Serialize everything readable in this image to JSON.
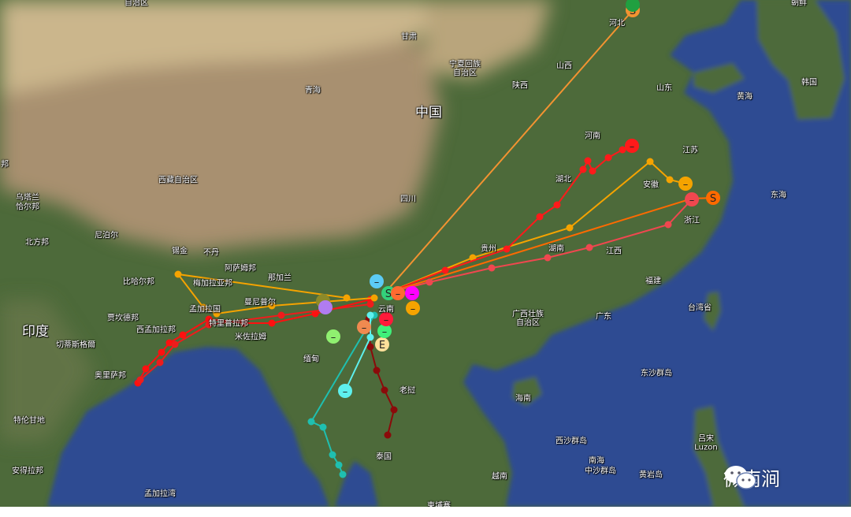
{
  "map": {
    "colors": {
      "ocean": "#2d4b92",
      "desert": "#cbb68c",
      "plateau": "#a8906f",
      "vegetation": "#4d6a3a"
    },
    "labels": {
      "xinjiang": "自治区",
      "gansu": "甘肃",
      "ningxia_1": "宁夏回族",
      "ningxia_2": "自治区",
      "shanxi": "山西",
      "shaanxi": "陕西",
      "hebei": "河北",
      "qinghai": "青海",
      "china": "中国",
      "shandong": "山东",
      "korea": "韩国",
      "dprk": "朝鲜",
      "yellow_sea": "黄海",
      "henan": "河南",
      "jiangsu": "江苏",
      "hubei": "湖北",
      "anhui": "安徽",
      "zhejiang": "浙江",
      "east_sea": "东海",
      "sichuan": "四川",
      "tibet": "西藏自治区",
      "guizhou": "贵州",
      "hunan": "湖南",
      "jiangxi": "江西",
      "fujian": "福建",
      "guangxi_1": "广西壮族",
      "guangxi_2": "自治区",
      "guangdong": "广东",
      "taiwan": "台湾省",
      "dongsha": "东沙群岛",
      "hainan": "海南",
      "xisha": "西沙群岛",
      "nanhai": "南海",
      "zhongsha": "中沙群岛",
      "huangyan": "黄岩岛",
      "luzon_cn": "吕宋",
      "luzon": "Luzon",
      "vietnam": "越南",
      "cambodia": "柬埔寨",
      "thailand": "泰国",
      "laos": "老挝",
      "myanmar": "缅甸",
      "yunnan": "云南",
      "mizoram": "米佐拉姆",
      "tripura": "特里普拉邦",
      "west_bengal": "西孟加拉邦",
      "bangladesh": "孟加拉国",
      "manipur": "曼尼普尔",
      "meghalaya": "梅加拉亚邦",
      "nagaland": "那加兰",
      "assam": "阿萨姆邦",
      "bihar": "比哈尔邦",
      "jharkhand": "贾坎德邦",
      "india": "印度",
      "chhattisgarh": "切蒂斯格爾",
      "odisha": "奥里萨邦",
      "telangana": "特伦甘地",
      "andhra": "安得拉邦",
      "bay_of_bengal": "孟加拉湾",
      "uttar_pradesh": "北方邦",
      "nepal": "尼泊尔",
      "sikkim": "锡金",
      "bhutan": "不丹",
      "uttarakhand_1": "乌塔兰",
      "uttarakhand_2": "恰尔邦",
      "state_cut": "邦"
    },
    "tracks": [
      {
        "name": "track-hebei",
        "color": "#f39331",
        "start_label": "S"
      },
      {
        "name": "track-anhui",
        "color": "#f5a300",
        "end_label": "–"
      },
      {
        "name": "track-henan",
        "color": "#ff1a1a",
        "end_label": "–"
      },
      {
        "name": "track-zhejiang",
        "color": "#ff6a00",
        "start_label": "S"
      },
      {
        "name": "track-zhejiang-2",
        "color": "#f0474f",
        "end_label": "–"
      },
      {
        "name": "track-india-1",
        "color": "#ff1010"
      },
      {
        "name": "track-india-2",
        "color": "#ee1c1c"
      },
      {
        "name": "track-bangladesh",
        "color": "#f5a300"
      },
      {
        "name": "track-thailand",
        "color": "#8b0a0a"
      },
      {
        "name": "track-myanmar-south",
        "color": "#1fbfb0"
      },
      {
        "name": "track-myanmar",
        "color": "#5ef0ee",
        "end_label": "–"
      }
    ],
    "markers": [
      {
        "color": "#5ccbf5",
        "label": "–"
      },
      {
        "color": "#33d17a",
        "label": "S"
      },
      {
        "color": "#ff00ff",
        "label": "–"
      },
      {
        "color": "#f5a300",
        "label": "–"
      },
      {
        "color": "#8c8a2a",
        "label": "–"
      },
      {
        "color": "#b07cf0",
        "label": ""
      },
      {
        "color": "#90f070",
        "label": "–"
      },
      {
        "color": "#ffe09a",
        "label": "E"
      },
      {
        "color": "#3ff07a",
        "label": "–"
      },
      {
        "color": "#f08a50",
        "label": "–"
      },
      {
        "color": "#ff1a3a",
        "label": "–"
      },
      {
        "color": "#ff6a30",
        "label": "–"
      },
      {
        "color": "#20a040",
        "label": ""
      }
    ]
  },
  "watermark": {
    "text": "微南涧",
    "icon": "wechat-icon"
  }
}
